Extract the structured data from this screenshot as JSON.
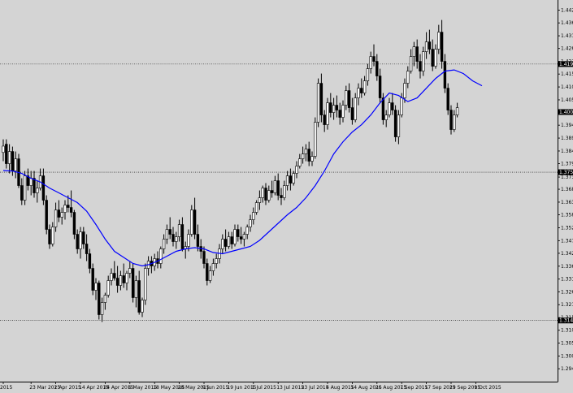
{
  "chart_data": {
    "type": "candlestick",
    "ylim": [
      1.2895,
      1.4462
    ],
    "y_ticks": [
      "1.44200",
      "1.43680",
      "1.43150",
      "1.42630",
      "1.42100",
      "1.41580",
      "1.41050",
      "1.40520",
      "1.40000",
      "1.39480",
      "1.38950",
      "1.38420",
      "1.37900",
      "1.37350",
      "1.36850",
      "1.36320",
      "1.35800",
      "1.35270",
      "1.34740",
      "1.34220",
      "1.33690",
      "1.33160",
      "1.32640",
      "1.32110",
      "1.31580",
      "1.31060",
      "1.30530",
      "1.30000",
      "1.29480"
    ],
    "y_tick_values": [
      1.442,
      1.4368,
      1.4315,
      1.4263,
      1.421,
      1.4158,
      1.4105,
      1.4052,
      1.4,
      1.3948,
      1.3895,
      1.3842,
      1.379,
      1.3735,
      1.3685,
      1.3632,
      1.358,
      1.3527,
      1.3474,
      1.3422,
      1.3369,
      1.3316,
      1.3264,
      1.3211,
      1.3158,
      1.3106,
      1.3053,
      1.3,
      1.2948
    ],
    "x_ticks": [
      "2015",
      "23 Mar 2015",
      "2 Apr 2015",
      "14 Apr 2015",
      "24 Apr 2015",
      "6 May 2015",
      "18 May 2015",
      "28 May 2015",
      "9 Jun 2015",
      "19 Jun 2015",
      "1 Jul 2015",
      "13 Jul 2015",
      "23 Jul 2015",
      "4 Aug 2015",
      "14 Aug 2015",
      "26 Aug 2015",
      "7 Sep 2015",
      "17 Sep 2015",
      "29 Sep 2015",
      "9 Oct 2015"
    ],
    "x_tick_index": [
      0,
      9,
      17,
      25,
      33,
      41,
      49,
      57,
      65,
      73,
      81,
      89,
      97,
      105,
      113,
      121,
      129,
      137,
      145,
      153
    ],
    "horizontal_levels": [
      {
        "value": 1.4199,
        "label": "1.41990"
      },
      {
        "value": 1.3755,
        "label": "1.37550"
      },
      {
        "value": 1.3146,
        "label": "1.31460"
      }
    ],
    "current_price_label": "1.40020",
    "current_price": 1.4002,
    "moving_average_color": "#0000ff",
    "bull_color": "#ffffff",
    "bear_color": "#000000",
    "ohlc": [
      [
        1.3836,
        1.389,
        1.38,
        1.3862
      ],
      [
        1.387,
        1.389,
        1.377,
        1.379
      ],
      [
        1.379,
        1.387,
        1.375,
        1.384
      ],
      [
        1.384,
        1.386,
        1.374,
        1.376
      ],
      [
        1.376,
        1.384,
        1.373,
        1.381
      ],
      [
        1.381,
        1.383,
        1.369,
        1.37
      ],
      [
        1.37,
        1.373,
        1.362,
        1.364
      ],
      [
        1.364,
        1.376,
        1.362,
        1.374
      ],
      [
        1.374,
        1.377,
        1.368,
        1.37
      ],
      [
        1.37,
        1.376,
        1.366,
        1.373
      ],
      [
        1.373,
        1.376,
        1.365,
        1.367
      ],
      [
        1.367,
        1.372,
        1.363,
        1.369
      ],
      [
        1.369,
        1.377,
        1.368,
        1.374
      ],
      [
        1.374,
        1.377,
        1.362,
        1.364
      ],
      [
        1.364,
        1.366,
        1.35,
        1.352
      ],
      [
        1.352,
        1.354,
        1.344,
        1.346
      ],
      [
        1.346,
        1.355,
        1.345,
        1.353
      ],
      [
        1.353,
        1.363,
        1.351,
        1.36
      ],
      [
        1.36,
        1.364,
        1.355,
        1.357
      ],
      [
        1.357,
        1.361,
        1.354,
        1.359
      ],
      [
        1.359,
        1.364,
        1.356,
        1.362
      ],
      [
        1.362,
        1.366,
        1.359,
        1.361
      ],
      [
        1.361,
        1.368,
        1.357,
        1.359
      ],
      [
        1.359,
        1.36,
        1.348,
        1.35
      ],
      [
        1.35,
        1.352,
        1.342,
        1.344
      ],
      [
        1.344,
        1.353,
        1.34,
        1.351
      ],
      [
        1.351,
        1.353,
        1.344,
        1.346
      ],
      [
        1.346,
        1.35,
        1.339,
        1.342
      ],
      [
        1.342,
        1.344,
        1.334,
        1.336
      ],
      [
        1.336,
        1.338,
        1.325,
        1.327
      ],
      [
        1.327,
        1.332,
        1.323,
        1.33
      ],
      [
        1.33,
        1.331,
        1.315,
        1.317
      ],
      [
        1.317,
        1.324,
        1.314,
        1.322
      ],
      [
        1.322,
        1.326,
        1.319,
        1.325
      ],
      [
        1.325,
        1.333,
        1.324,
        1.331
      ],
      [
        1.331,
        1.336,
        1.329,
        1.334
      ],
      [
        1.334,
        1.339,
        1.331,
        1.332
      ],
      [
        1.332,
        1.337,
        1.326,
        1.329
      ],
      [
        1.329,
        1.335,
        1.327,
        1.333
      ],
      [
        1.333,
        1.338,
        1.328,
        1.33
      ],
      [
        1.33,
        1.335,
        1.327,
        1.334
      ],
      [
        1.334,
        1.339,
        1.332,
        1.336
      ],
      [
        1.336,
        1.338,
        1.322,
        1.324
      ],
      [
        1.324,
        1.333,
        1.32,
        1.331
      ],
      [
        1.331,
        1.335,
        1.317,
        1.318
      ],
      [
        1.318,
        1.324,
        1.316,
        1.323
      ],
      [
        1.323,
        1.338,
        1.321,
        1.336
      ],
      [
        1.336,
        1.341,
        1.333,
        1.339
      ],
      [
        1.339,
        1.341,
        1.334,
        1.337
      ],
      [
        1.337,
        1.342,
        1.335,
        1.34
      ],
      [
        1.34,
        1.343,
        1.336,
        1.338
      ],
      [
        1.338,
        1.345,
        1.336,
        1.344
      ],
      [
        1.344,
        1.35,
        1.342,
        1.348
      ],
      [
        1.348,
        1.354,
        1.346,
        1.352
      ],
      [
        1.352,
        1.357,
        1.348,
        1.35
      ],
      [
        1.35,
        1.353,
        1.345,
        1.347
      ],
      [
        1.347,
        1.351,
        1.344,
        1.349
      ],
      [
        1.349,
        1.356,
        1.347,
        1.354
      ],
      [
        1.354,
        1.357,
        1.343,
        1.344
      ],
      [
        1.344,
        1.347,
        1.34,
        1.345
      ],
      [
        1.345,
        1.352,
        1.343,
        1.35
      ],
      [
        1.35,
        1.362,
        1.349,
        1.36
      ],
      [
        1.36,
        1.365,
        1.348,
        1.35
      ],
      [
        1.35,
        1.354,
        1.343,
        1.345
      ],
      [
        1.345,
        1.348,
        1.34,
        1.343
      ],
      [
        1.343,
        1.345,
        1.336,
        1.338
      ],
      [
        1.338,
        1.34,
        1.329,
        1.331
      ],
      [
        1.331,
        1.337,
        1.33,
        1.335
      ],
      [
        1.335,
        1.34,
        1.333,
        1.338
      ],
      [
        1.338,
        1.342,
        1.336,
        1.34
      ],
      [
        1.34,
        1.346,
        1.338,
        1.344
      ],
      [
        1.344,
        1.35,
        1.342,
        1.348
      ],
      [
        1.348,
        1.352,
        1.343,
        1.345
      ],
      [
        1.345,
        1.351,
        1.344,
        1.349
      ],
      [
        1.349,
        1.351,
        1.344,
        1.346
      ],
      [
        1.346,
        1.354,
        1.345,
        1.352
      ],
      [
        1.352,
        1.354,
        1.347,
        1.349
      ],
      [
        1.349,
        1.353,
        1.346,
        1.348
      ],
      [
        1.348,
        1.351,
        1.345,
        1.35
      ],
      [
        1.35,
        1.354,
        1.348,
        1.353
      ],
      [
        1.353,
        1.358,
        1.351,
        1.356
      ],
      [
        1.356,
        1.361,
        1.354,
        1.359
      ],
      [
        1.359,
        1.364,
        1.358,
        1.363
      ],
      [
        1.363,
        1.368,
        1.36,
        1.365
      ],
      [
        1.365,
        1.37,
        1.363,
        1.369
      ],
      [
        1.369,
        1.371,
        1.362,
        1.364
      ],
      [
        1.364,
        1.37,
        1.363,
        1.368
      ],
      [
        1.368,
        1.372,
        1.365,
        1.367
      ],
      [
        1.367,
        1.374,
        1.366,
        1.372
      ],
      [
        1.372,
        1.375,
        1.364,
        1.366
      ],
      [
        1.366,
        1.369,
        1.362,
        1.365
      ],
      [
        1.365,
        1.372,
        1.364,
        1.37
      ],
      [
        1.37,
        1.376,
        1.368,
        1.374
      ],
      [
        1.374,
        1.377,
        1.368,
        1.371
      ],
      [
        1.371,
        1.376,
        1.37,
        1.375
      ],
      [
        1.375,
        1.38,
        1.373,
        1.378
      ],
      [
        1.378,
        1.383,
        1.377,
        1.381
      ],
      [
        1.381,
        1.386,
        1.379,
        1.383
      ],
      [
        1.383,
        1.387,
        1.38,
        1.385
      ],
      [
        1.385,
        1.388,
        1.378,
        1.38
      ],
      [
        1.38,
        1.384,
        1.378,
        1.382
      ],
      [
        1.382,
        1.398,
        1.381,
        1.396
      ],
      [
        1.396,
        1.414,
        1.394,
        1.412
      ],
      [
        1.412,
        1.416,
        1.396,
        1.399
      ],
      [
        1.399,
        1.401,
        1.392,
        1.395
      ],
      [
        1.395,
        1.406,
        1.393,
        1.404
      ],
      [
        1.404,
        1.408,
        1.398,
        1.4
      ],
      [
        1.4,
        1.406,
        1.397,
        1.403
      ],
      [
        1.403,
        1.407,
        1.398,
        1.401
      ],
      [
        1.401,
        1.404,
        1.395,
        1.398
      ],
      [
        1.398,
        1.405,
        1.396,
        1.403
      ],
      [
        1.403,
        1.411,
        1.401,
        1.409
      ],
      [
        1.409,
        1.412,
        1.4,
        1.402
      ],
      [
        1.402,
        1.406,
        1.395,
        1.397
      ],
      [
        1.397,
        1.408,
        1.396,
        1.406
      ],
      [
        1.406,
        1.412,
        1.403,
        1.41
      ],
      [
        1.41,
        1.414,
        1.406,
        1.408
      ],
      [
        1.408,
        1.415,
        1.407,
        1.413
      ],
      [
        1.413,
        1.42,
        1.411,
        1.418
      ],
      [
        1.418,
        1.425,
        1.416,
        1.423
      ],
      [
        1.423,
        1.428,
        1.419,
        1.421
      ],
      [
        1.421,
        1.424,
        1.413,
        1.415
      ],
      [
        1.415,
        1.418,
        1.404,
        1.406
      ],
      [
        1.406,
        1.408,
        1.395,
        1.397
      ],
      [
        1.397,
        1.401,
        1.394,
        1.399
      ],
      [
        1.399,
        1.406,
        1.398,
        1.404
      ],
      [
        1.404,
        1.408,
        1.399,
        1.401
      ],
      [
        1.401,
        1.403,
        1.388,
        1.39
      ],
      [
        1.39,
        1.401,
        1.387,
        1.399
      ],
      [
        1.399,
        1.408,
        1.398,
        1.406
      ],
      [
        1.406,
        1.414,
        1.404,
        1.412
      ],
      [
        1.412,
        1.419,
        1.41,
        1.417
      ],
      [
        1.417,
        1.426,
        1.416,
        1.423
      ],
      [
        1.423,
        1.429,
        1.419,
        1.427
      ],
      [
        1.427,
        1.43,
        1.418,
        1.421
      ],
      [
        1.421,
        1.424,
        1.414,
        1.417
      ],
      [
        1.417,
        1.427,
        1.415,
        1.425
      ],
      [
        1.425,
        1.433,
        1.422,
        1.429
      ],
      [
        1.429,
        1.434,
        1.424,
        1.426
      ],
      [
        1.426,
        1.43,
        1.417,
        1.419
      ],
      [
        1.419,
        1.428,
        1.418,
        1.426
      ],
      [
        1.426,
        1.436,
        1.424,
        1.433
      ],
      [
        1.433,
        1.438,
        1.418,
        1.421
      ],
      [
        1.421,
        1.424,
        1.408,
        1.41
      ],
      [
        1.41,
        1.412,
        1.399,
        1.401
      ],
      [
        1.401,
        1.403,
        1.391,
        1.393
      ],
      [
        1.393,
        1.401,
        1.392,
        1.399
      ],
      [
        1.399,
        1.404,
        1.398,
        1.402
      ]
    ],
    "ma": [
      [
        0,
        1.3762
      ],
      [
        3,
        1.376
      ],
      [
        6,
        1.375
      ],
      [
        9,
        1.373
      ],
      [
        12,
        1.3715
      ],
      [
        15,
        1.369
      ],
      [
        18,
        1.367
      ],
      [
        21,
        1.365
      ],
      [
        24,
        1.363
      ],
      [
        27,
        1.3595
      ],
      [
        30,
        1.354
      ],
      [
        33,
        1.348
      ],
      [
        36,
        1.343
      ],
      [
        39,
        1.3405
      ],
      [
        42,
        1.338
      ],
      [
        45,
        1.337
      ],
      [
        47,
        1.3375
      ],
      [
        50,
        1.339
      ],
      [
        53,
        1.341
      ],
      [
        56,
        1.343
      ],
      [
        59,
        1.344
      ],
      [
        62,
        1.3445
      ],
      [
        65,
        1.344
      ],
      [
        68,
        1.3425
      ],
      [
        71,
        1.342
      ],
      [
        74,
        1.343
      ],
      [
        77,
        1.344
      ],
      [
        80,
        1.345
      ],
      [
        83,
        1.3475
      ],
      [
        86,
        1.351
      ],
      [
        89,
        1.3545
      ],
      [
        92,
        1.358
      ],
      [
        95,
        1.361
      ],
      [
        98,
        1.365
      ],
      [
        101,
        1.37
      ],
      [
        104,
        1.376
      ],
      [
        107,
        1.383
      ],
      [
        110,
        1.388
      ],
      [
        113,
        1.392
      ],
      [
        116,
        1.395
      ],
      [
        119,
        1.399
      ],
      [
        122,
        1.404
      ],
      [
        125,
        1.408
      ],
      [
        128,
        1.407
      ],
      [
        131,
        1.4045
      ],
      [
        134,
        1.406
      ],
      [
        137,
        1.41
      ],
      [
        140,
        1.414
      ],
      [
        143,
        1.417
      ],
      [
        146,
        1.4175
      ],
      [
        149,
        1.416
      ],
      [
        152,
        1.413
      ],
      [
        155,
        1.411
      ]
    ]
  }
}
